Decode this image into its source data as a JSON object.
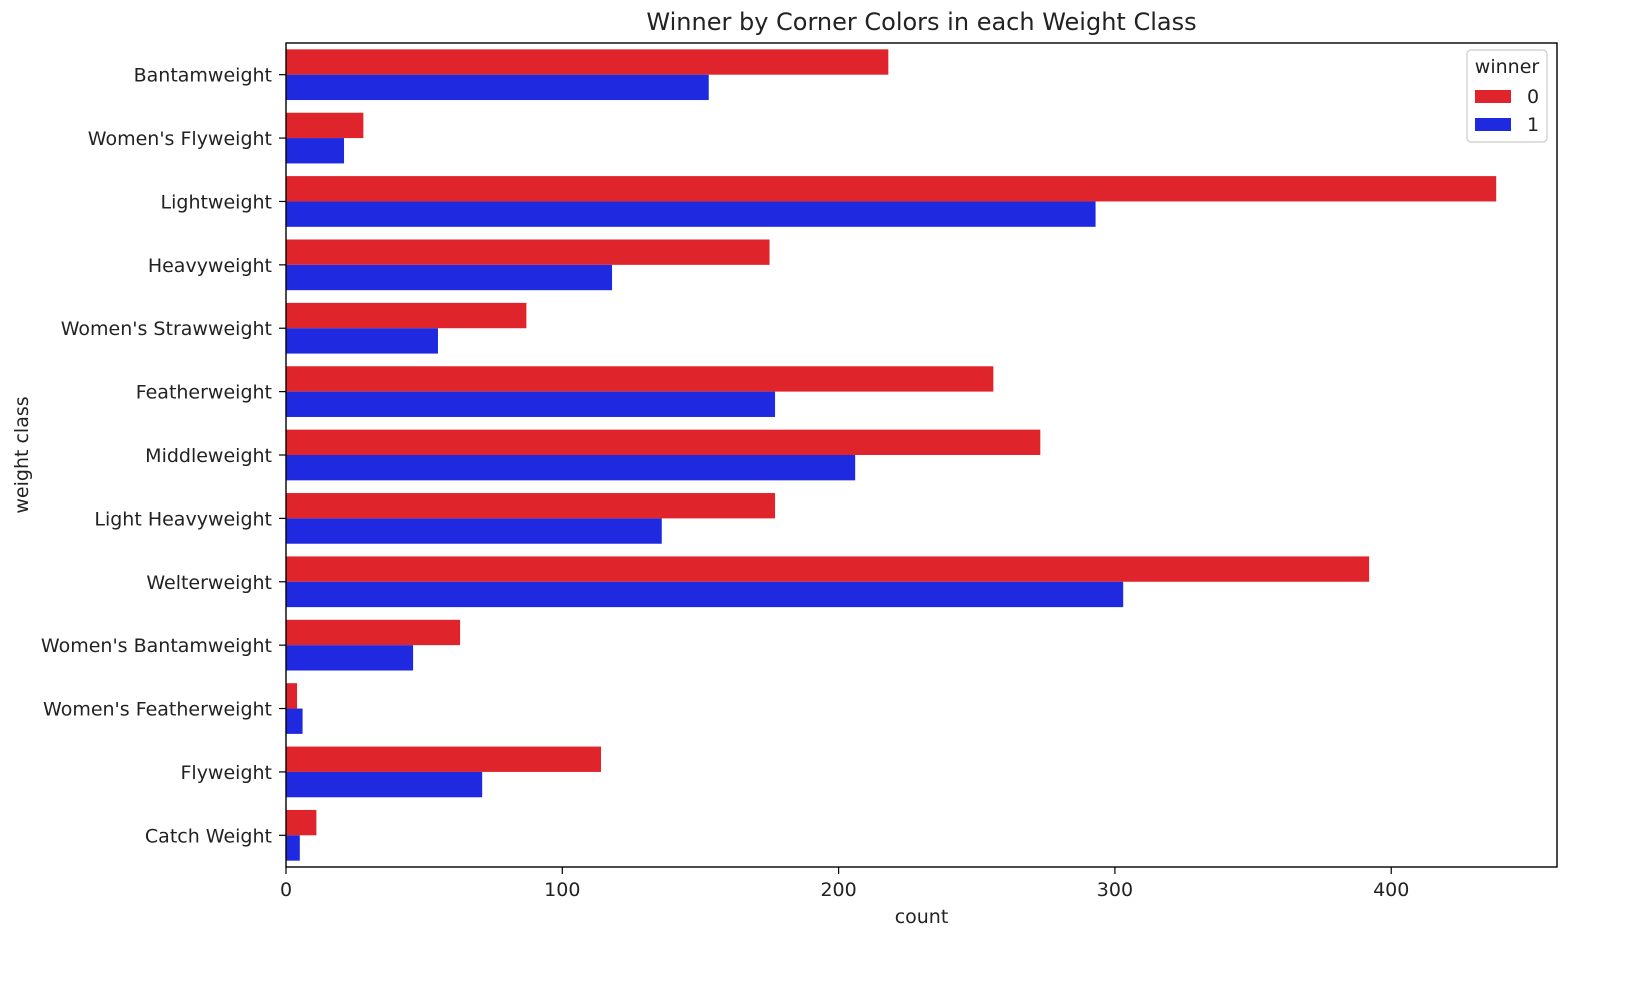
{
  "chart_data": {
    "type": "bar",
    "orientation": "horizontal",
    "title": "Winner by Corner Colors in each Weight Class",
    "xlabel": "count",
    "ylabel": "weight class",
    "xlim": [
      0,
      460
    ],
    "xticks": [
      0,
      100,
      200,
      300,
      400
    ],
    "grid": false,
    "legend": {
      "title": "winner",
      "placement": "top-right"
    },
    "categories": [
      "Bantamweight",
      "Women's Flyweight",
      "Lightweight",
      "Heavyweight",
      "Women's Strawweight",
      "Featherweight",
      "Middleweight",
      "Light Heavyweight",
      "Welterweight",
      "Women's Bantamweight",
      "Women's Featherweight",
      "Flyweight",
      "Catch Weight"
    ],
    "series": [
      {
        "name": "0",
        "color": "#e0242b",
        "values": [
          218,
          28,
          438,
          175,
          87,
          256,
          273,
          177,
          392,
          63,
          4,
          114,
          11
        ]
      },
      {
        "name": "1",
        "color": "#1f2ae0",
        "values": [
          153,
          21,
          293,
          118,
          55,
          177,
          206,
          136,
          303,
          46,
          6,
          71,
          5
        ]
      }
    ]
  }
}
